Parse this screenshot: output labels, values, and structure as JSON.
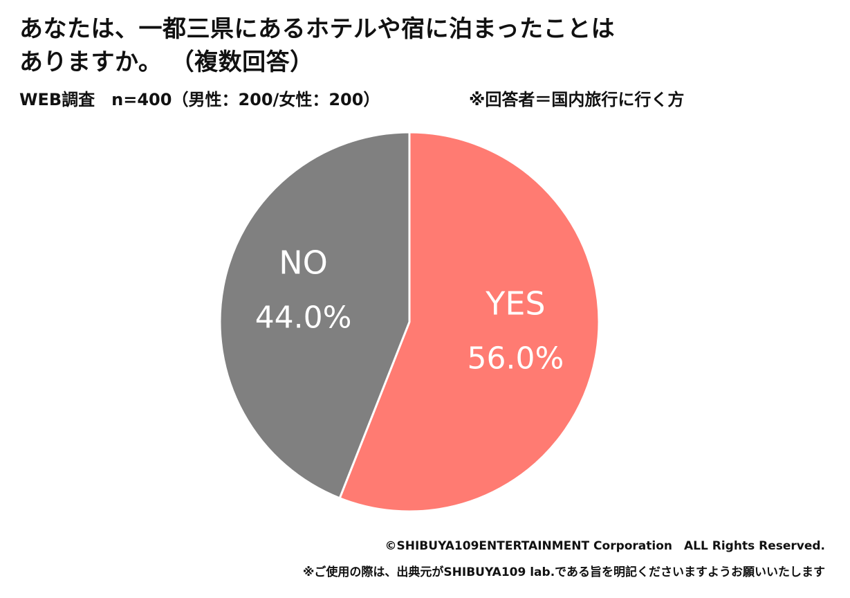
{
  "header": {
    "title_line1": "あなたは、一都三県にあるホテルや宿に泊まったことは",
    "title_line2": "ありますか。 （複数回答）",
    "survey_info": "WEB調査　n=400（男性：200/女性：200）",
    "respondent_note": "※回答者＝国内旅行に行く方"
  },
  "chart_data": {
    "type": "pie",
    "title": "あなたは、一都三県にあるホテルや宿に泊まったことは ありますか。 （複数回答）",
    "categories": [
      "YES",
      "NO"
    ],
    "values": [
      56.0,
      44.0
    ],
    "value_labels": [
      "56.0%",
      "44.0%"
    ],
    "colors": [
      "#FF7B72",
      "#808080"
    ],
    "label_color": "#FFFFFF",
    "start": "12 o'clock, clockwise",
    "legend": "none"
  },
  "footer": {
    "copyright": "©SHIBUYA109ENTERTAINMENT Corporation　ALL Rights Reserved.",
    "usage_note": "※ご使用の際は、出典元がSHIBUYA109 lab.である旨を明記くださいますようお願いいたします"
  }
}
